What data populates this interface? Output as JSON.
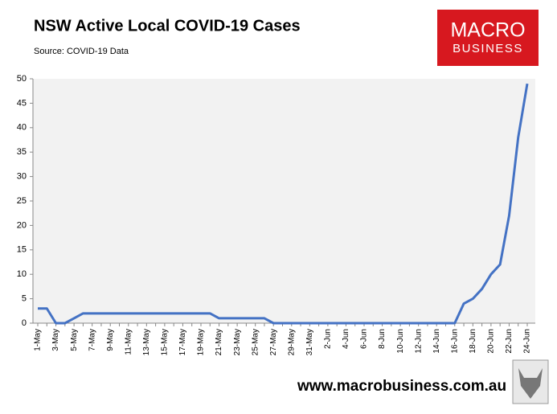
{
  "chart_data": {
    "type": "line",
    "title": "NSW Active Local COVID-19 Cases",
    "subtitle": "Source: COVID-19 Data",
    "logo_text": [
      "MACRO",
      "BUSINESS"
    ],
    "footer": "www.macrobusiness.com.au",
    "categories": [
      "1-May",
      null,
      "3-May",
      null,
      "5-May",
      null,
      "7-May",
      null,
      "9-May",
      null,
      "11-May",
      null,
      "13-May",
      null,
      "15-May",
      null,
      "17-May",
      null,
      "19-May",
      null,
      "21-May",
      null,
      "23-May",
      null,
      "25-May",
      null,
      "27-May",
      null,
      "29-May",
      null,
      "31-May",
      null,
      "2-Jun",
      null,
      "4-Jun",
      null,
      "6-Jun",
      null,
      "8-Jun",
      null,
      "10-Jun",
      null,
      "12-Jun",
      null,
      "14-Jun",
      null,
      "16-Jun",
      null,
      "18-Jun",
      null,
      "20-Jun",
      null,
      "22-Jun",
      null,
      "24-Jun"
    ],
    "values": [
      3,
      3,
      0,
      0,
      1,
      2,
      2,
      2,
      2,
      2,
      2,
      2,
      2,
      2,
      2,
      2,
      2,
      2,
      2,
      2,
      1,
      1,
      1,
      1,
      1,
      1,
      0,
      0,
      0,
      0,
      0,
      0,
      0,
      0,
      0,
      0,
      0,
      0,
      0,
      0,
      0,
      0,
      0,
      0,
      0,
      0,
      0,
      4,
      5,
      7,
      10,
      12,
      22,
      38,
      49
    ],
    "color": "#4472c4",
    "ylim": [
      0,
      50
    ],
    "yticks": [
      0,
      5,
      10,
      15,
      20,
      25,
      30,
      35,
      40,
      45,
      50
    ],
    "plot_background": "#f2f2f2"
  }
}
